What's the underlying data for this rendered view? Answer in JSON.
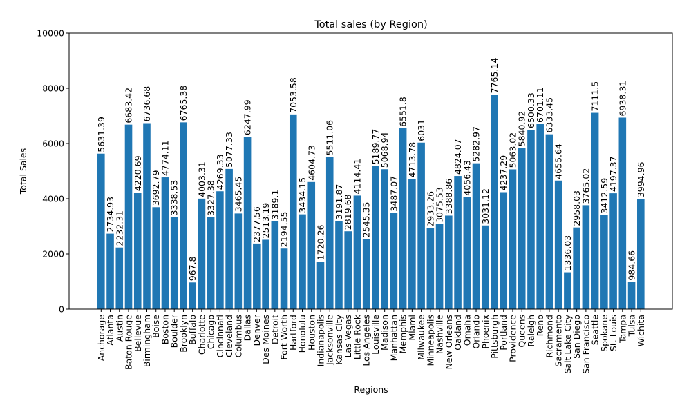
{
  "chart_data": {
    "type": "bar",
    "title": "Total sales (by Region)",
    "xlabel": "Regions",
    "ylabel": "Total Sales",
    "ylim": [
      0,
      10000
    ],
    "yticks": [
      0,
      2000,
      4000,
      6000,
      8000,
      10000
    ],
    "bar_color": "#1f77b4",
    "grid": false,
    "categories": [
      "Anchorage",
      "Atlanta",
      "Austin",
      "Baton Rouge",
      "Bellevue",
      "Birmingham",
      "Boise",
      "Boston",
      "Boulder",
      "Brooklyn",
      "Buffalo",
      "Charlotte",
      "Chicago",
      "Cincinnati",
      "Cleveland",
      "Columbus",
      "Dallas",
      "Denver",
      "Des Moines",
      "Detroit",
      "Fort Worth",
      "Hartford",
      "Honolulu",
      "Houston",
      "Indianapolis",
      "Jacksonville",
      "Kansas City",
      "Las Vegas",
      "Little Rock",
      "Los Angeles",
      "Louisville",
      "Madison",
      "Manhattan",
      "Memphis",
      "Miami",
      "Milwaukee",
      "Minneapolis",
      "Nashville",
      "New Orleans",
      "Oakland",
      "Omaha",
      "Orlando",
      "Phoenix",
      "Pittsburgh",
      "Portland",
      "Providence",
      "Queens",
      "Raleigh",
      "Reno",
      "Richmond",
      "Sacramento",
      "Salt Lake City",
      "San Diego",
      "San Francisco",
      "Seattle",
      "Spokane",
      "St. Louis",
      "Tampa",
      "Tulsa",
      "Wichita"
    ],
    "values": [
      5631.39,
      2734.93,
      2232.31,
      6683.42,
      4220.69,
      6736.68,
      3692.79,
      4774.11,
      3338.53,
      6765.38,
      967.8,
      4003.31,
      3327.38,
      4269.33,
      5077.33,
      3465.45,
      6247.99,
      2377.56,
      2513.19,
      3189.1,
      2194.55,
      7053.58,
      3434.15,
      4604.73,
      1720.26,
      5511.06,
      3191.87,
      2819.68,
      4114.41,
      2545.35,
      5189.77,
      5068.94,
      3487.07,
      6551.8,
      4713.78,
      6031,
      2933.26,
      3075.53,
      3388.86,
      4824.07,
      4056.43,
      5282.97,
      3031.12,
      7765.14,
      4237.29,
      5063.02,
      5840.92,
      6500.33,
      6701.11,
      6333.45,
      4655.64,
      1336.03,
      2958.03,
      3765.02,
      7111.5,
      3412.59,
      4197.37,
      6938.31,
      984.66,
      3994.96
    ],
    "value_labels": [
      "5631.39",
      "2734.93",
      "2232.31",
      "6683.42",
      "4220.69",
      "6736.68",
      "3692.79",
      "4774.11",
      "3338.53",
      "6765.38",
      "967.8",
      "4003.31",
      "3327.38",
      "4269.33",
      "5077.33",
      "3465.45",
      "6247.99",
      "2377.56",
      "2513.19",
      "3189.1",
      "2194.55",
      "7053.58",
      "3434.15",
      "4604.73",
      "1720.26",
      "5511.06",
      "3191.87",
      "2819.68",
      "4114.41",
      "2545.35",
      "5189.77",
      "5068.94",
      "3487.07",
      "6551.8",
      "4713.78",
      "6031",
      "2933.26",
      "3075.53",
      "3388.86",
      "4824.07",
      "4056.43",
      "5282.97",
      "3031.12",
      "7765.14",
      "4237.29",
      "5063.02",
      "5840.92",
      "6500.33",
      "6701.11",
      "6333.45",
      "4655.64",
      "1336.03",
      "2958.03",
      "3765.02",
      "7111.5",
      "3412.59",
      "4197.37",
      "6938.31",
      "984.66",
      "3994.96"
    ]
  }
}
